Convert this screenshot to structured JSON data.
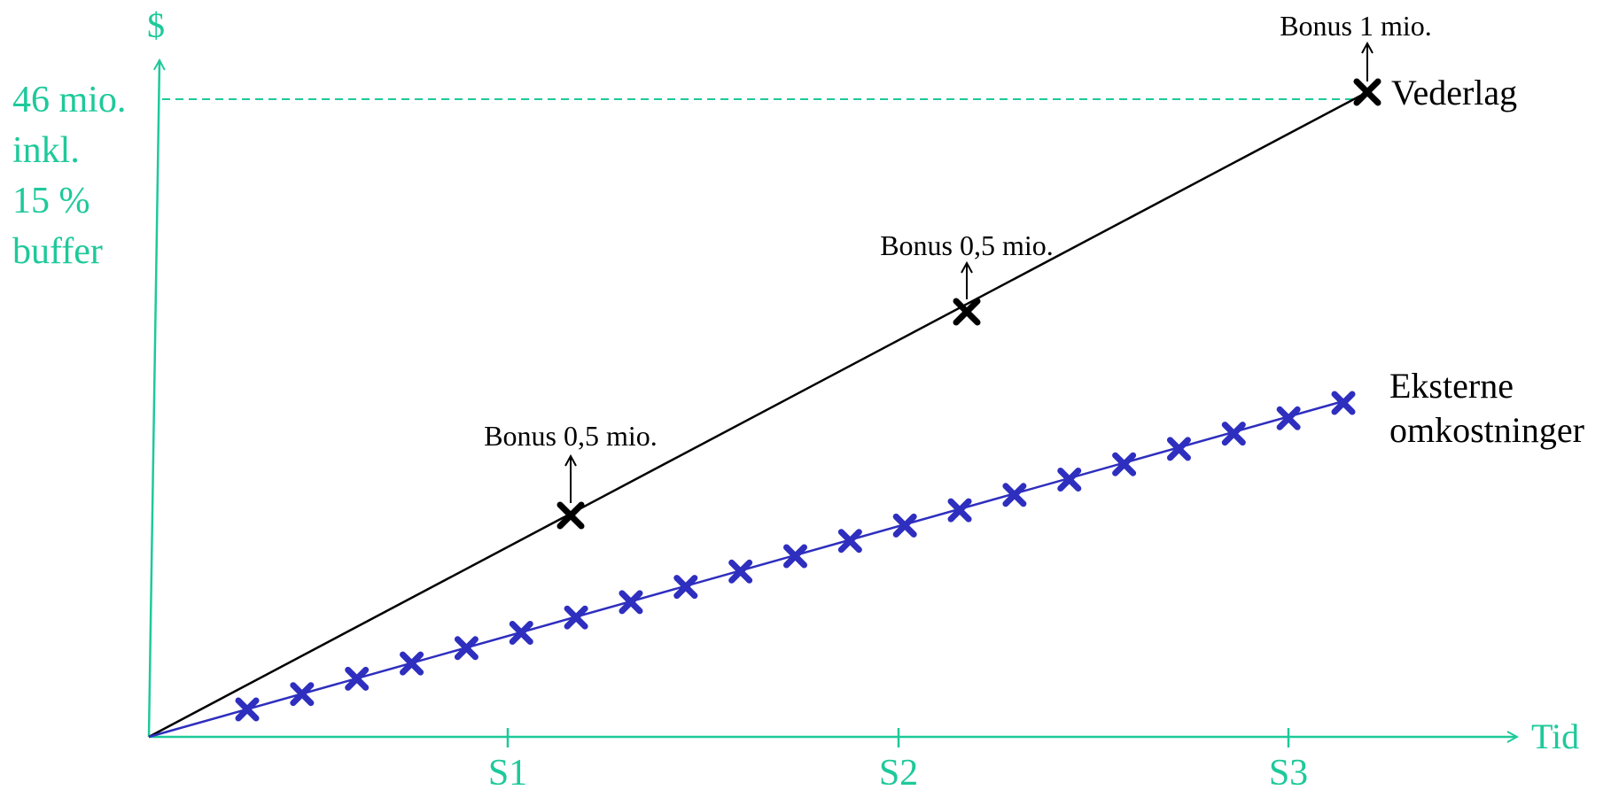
{
  "colors": {
    "axis": "#1ec99a",
    "vederlag": "#000000",
    "eksterne": "#2e2ebf"
  },
  "axes": {
    "y_label": "$",
    "x_label": "Tid",
    "y_value_lines": [
      "46 mio.",
      "inkl.",
      "15 %",
      "buffer"
    ],
    "x_ticks": [
      "S1",
      "S2",
      "S3"
    ]
  },
  "series": {
    "vederlag": {
      "label": "Vederlag",
      "markers": 3
    },
    "eksterne": {
      "label_lines": [
        "Eksterne",
        "omkostninger"
      ],
      "markers": 21
    }
  },
  "bonuses": [
    {
      "label": "Bonus 0,5 mio."
    },
    {
      "label": "Bonus 0,5 mio."
    },
    {
      "label": "Bonus 1 mio."
    }
  ]
}
